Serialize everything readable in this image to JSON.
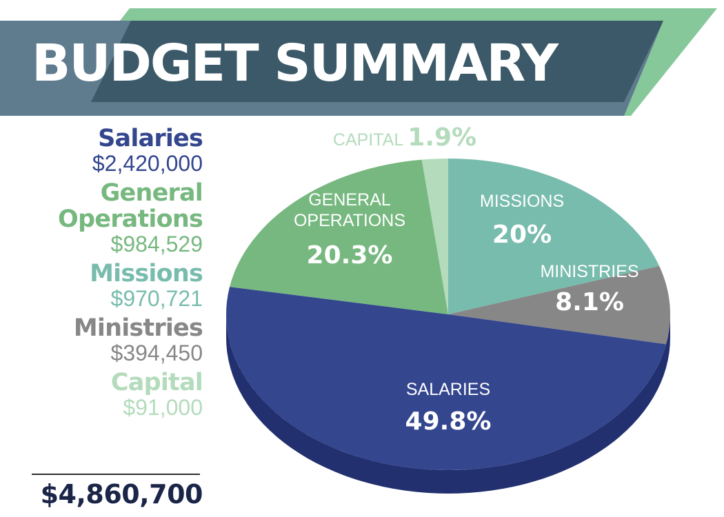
{
  "title": "BUDGET SUMMARY",
  "colors": {
    "banner_dark": "#3b5968",
    "banner_slate": "#5f7b8e",
    "banner_green": "#86c89a",
    "salaries": "#33468e",
    "salaries_side": "#23306f",
    "general_operations": "#76b87f",
    "missions": "#78bcad",
    "ministries": "#878787",
    "capital": "#b4dbbc",
    "total": "#1a2548"
  },
  "legend": [
    {
      "name": "Salaries",
      "amount": "$2,420,000"
    },
    {
      "name": "General Operations",
      "amount": "$984,529"
    },
    {
      "name": "Missions",
      "amount": "$970,721"
    },
    {
      "name": "Ministries",
      "amount": "$394,450"
    },
    {
      "name": "Capital",
      "amount": "$91,000"
    }
  ],
  "total": "$4,860,700",
  "chart_data": {
    "type": "pie",
    "style": "3d",
    "slices": [
      {
        "label": "MISSIONS",
        "display": "20%",
        "value": 20.0
      },
      {
        "label": "MINISTRIES",
        "display": "8.1%",
        "value": 8.1
      },
      {
        "label": "SALARIES",
        "display": "49.8%",
        "value": 49.8
      },
      {
        "label": "GENERAL OPERATIONS",
        "display": "20.3%",
        "value": 20.3
      },
      {
        "label": "CAPITAL",
        "display": "1.9%",
        "value": 1.9
      }
    ]
  }
}
